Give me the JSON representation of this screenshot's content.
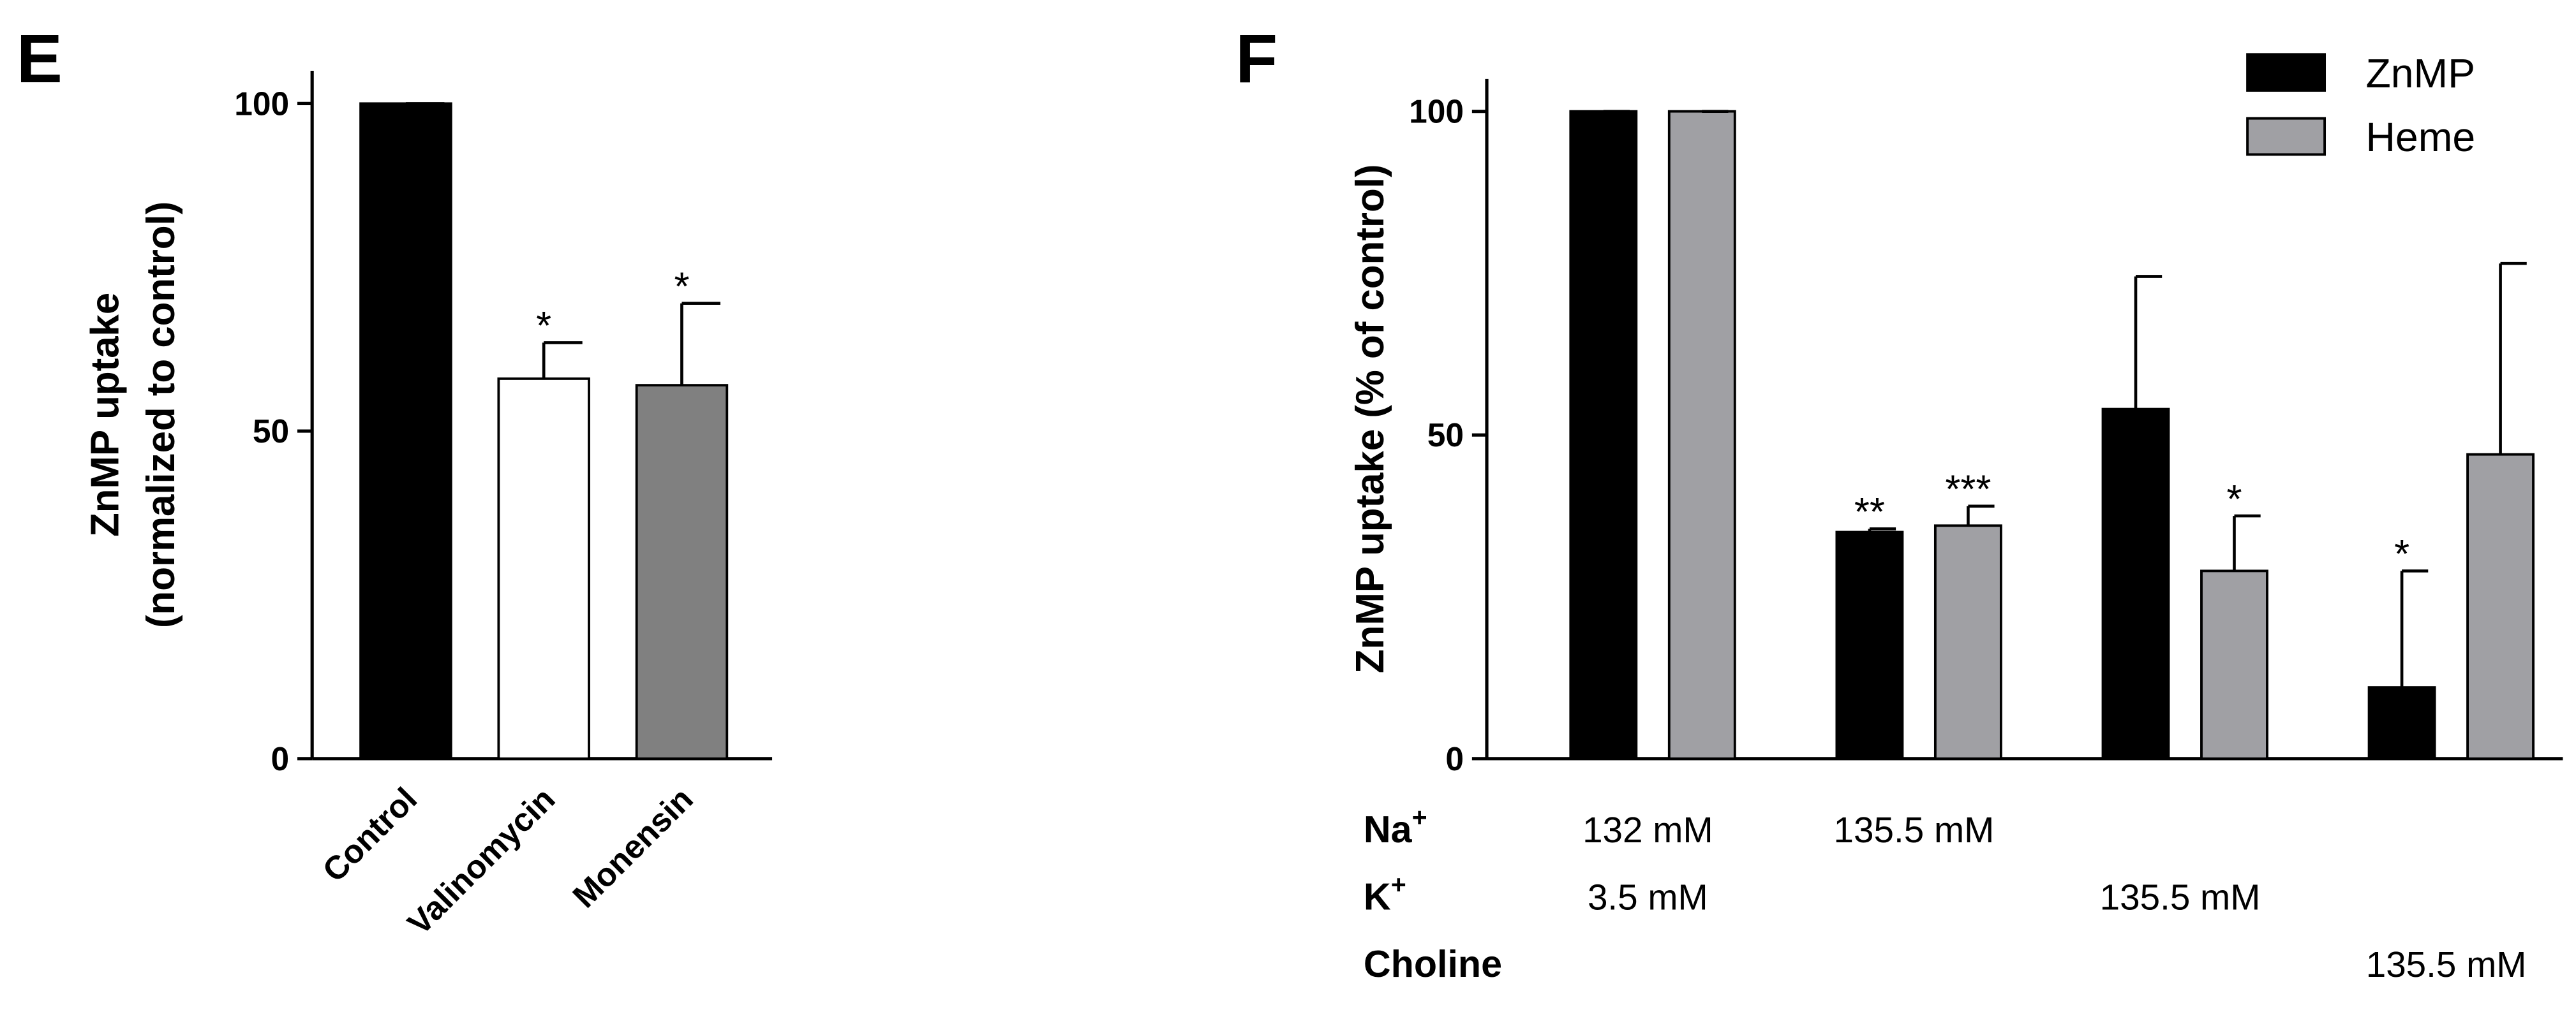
{
  "chart_data": [
    {
      "type": "bar",
      "panel_label": "E",
      "ylabel": [
        "ZnMP uptake",
        "(normalized to control)"
      ],
      "categories": [
        "Control",
        "Valinomycin",
        "Monensin"
      ],
      "values": [
        100,
        58,
        57
      ],
      "errors": [
        0,
        5.5,
        12.5
      ],
      "significance": [
        null,
        "*",
        "*"
      ],
      "colors": [
        "#000000",
        "#ffffff",
        "#808080"
      ],
      "ylim": [
        0,
        105
      ],
      "yticks": [
        0,
        50,
        100
      ]
    },
    {
      "type": "grouped_bar",
      "panel_label": "F",
      "ylabel": "ZnMP uptake (% of control)",
      "categories": [
        null,
        null,
        null,
        null
      ],
      "series": [
        {
          "name": "ZnMP",
          "color": "#000000",
          "values": [
            100,
            35,
            54,
            11
          ],
          "errors": [
            0,
            0.5,
            20.5,
            18
          ],
          "significance": [
            null,
            "**",
            null,
            "*"
          ]
        },
        {
          "name": "Heme",
          "color": "#a0a0a4",
          "values": [
            100,
            36,
            29,
            47
          ],
          "errors": [
            0,
            3,
            8.5,
            29.5
          ],
          "significance": [
            null,
            "***",
            "*",
            null
          ]
        }
      ],
      "ylim": [
        0,
        105
      ],
      "yticks": [
        0,
        50,
        100
      ],
      "legend": "upper right",
      "conditions": [
        {
          "label": "Na",
          "sup": "+",
          "cells": [
            "132 mM",
            "135.5 mM",
            null,
            null
          ]
        },
        {
          "label": "K",
          "sup": "+",
          "cells": [
            "3.5 mM",
            null,
            "135.5 mM",
            null
          ]
        },
        {
          "label": "Choline",
          "sup": null,
          "cells": [
            null,
            null,
            null,
            "135.5 mM"
          ]
        }
      ]
    }
  ]
}
